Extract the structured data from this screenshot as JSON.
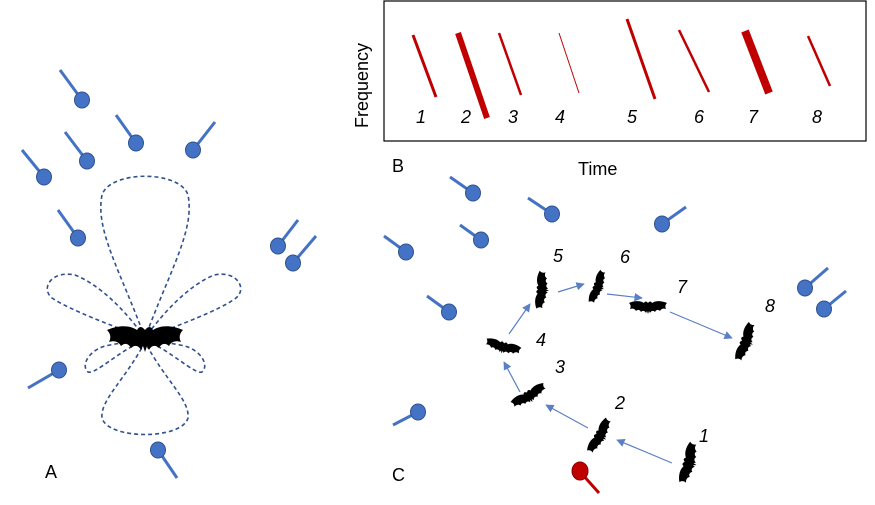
{
  "panels": {
    "a": "A",
    "b": "B",
    "c": "C"
  },
  "spectrogram": {
    "ylabel": "Frequency",
    "xlabel": "Time",
    "call_labels": [
      "1",
      "2",
      "3",
      "4",
      "5",
      "6",
      "7",
      "8"
    ],
    "call_color": "#c00000"
  },
  "trajectory": {
    "bat_labels": [
      "1",
      "2",
      "3",
      "4",
      "5",
      "6",
      "7",
      "8"
    ]
  },
  "colors": {
    "insect": "#4472c4",
    "insect_outline": "#2f528f",
    "target": "#c00000",
    "beam": "#2f4f8f",
    "arrow": "#5b7fc4",
    "bat": "#000000"
  },
  "icons": {
    "bat": "bat-silhouette-icon",
    "insect": "insect-icon",
    "target": "target-insect-icon"
  }
}
